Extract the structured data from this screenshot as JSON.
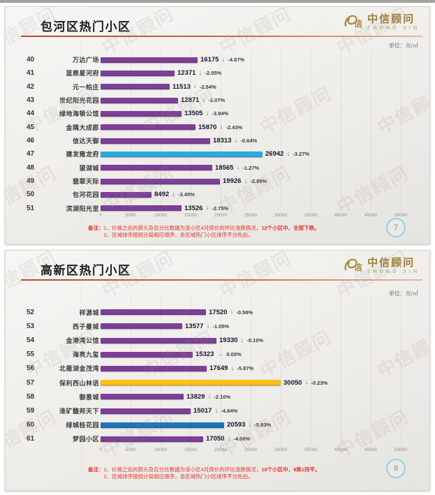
{
  "unit_label": "单位：元/㎡",
  "logo": {
    "name": "中信顾问",
    "subname": "ZHONG XIN"
  },
  "watermark_text": "中信顾问",
  "colors": {
    "bar_purple": "#7d3f98",
    "bar_light_blue": "#29abe2",
    "bar_mid_blue": "#1b75bc",
    "bar_gold": "#ffc213",
    "down_arrow": "#2fa84f",
    "flat_arrow": "#2b9fe0",
    "note_red": "#e8342a",
    "badge_ring": "#8ed2e8",
    "brand_gold": "#9f7f35"
  },
  "slides": [
    {
      "title": "包河区热门小区",
      "page_number": "7",
      "note": {
        "label": "备注：",
        "line1": "1、价格之后的箭头及百分比数据为该小区4月房价的环比涨跌情况，",
        "line1_em": "12个小区中，全部下跌。",
        "line2": "2、区域排序按统计局相应顺序，各区域热门小区排序不分先后。"
      },
      "chart_data": {
        "type": "bar",
        "orientation": "horizontal",
        "value_unit": "元/㎡",
        "xlim": [
          0,
          50000
        ],
        "x_ticks": [
          0,
          5000,
          10000,
          15000,
          20000,
          25000,
          30000,
          35000,
          40000,
          45000,
          50000
        ],
        "grid": true,
        "rows": [
          {
            "rank": "40",
            "name": "万达广场",
            "value": 16175,
            "change": "-4.87%",
            "trend": "down",
            "color": "#7d3f98"
          },
          {
            "rank": "41",
            "name": "蓝鼎星河府",
            "value": 12371,
            "change": "-2.05%",
            "trend": "down",
            "color": "#7d3f98"
          },
          {
            "rank": "42",
            "name": "元一柏庄",
            "value": 11513,
            "change": "-2.54%",
            "trend": "down",
            "color": "#7d3f98"
          },
          {
            "rank": "43",
            "name": "世纪阳光花园",
            "value": 12871,
            "change": "-1.07%",
            "trend": "down",
            "color": "#7d3f98"
          },
          {
            "rank": "44",
            "name": "绿地海顿公馆",
            "value": 13505,
            "change": "-3.94%",
            "trend": "down",
            "color": "#7d3f98"
          },
          {
            "rank": "45",
            "name": "金隅大成郡",
            "value": 15870,
            "change": "-2.43%",
            "trend": "down",
            "color": "#7d3f98"
          },
          {
            "rank": "46",
            "name": "信达天御",
            "value": 18313,
            "change": "-0.64%",
            "trend": "down",
            "color": "#7d3f98"
          },
          {
            "rank": "47",
            "name": "建发雍龙府",
            "value": 26942,
            "change": "-3.27%",
            "trend": "down",
            "color": "#29abe2"
          },
          {
            "rank": "48",
            "name": "望湖城",
            "value": 18565,
            "change": "-1.27%",
            "trend": "down",
            "color": "#7d3f98"
          },
          {
            "rank": "49",
            "name": "翡翠天际",
            "value": 19926,
            "change": "-2.99%",
            "trend": "down",
            "color": "#7d3f98"
          },
          {
            "rank": "50",
            "name": "包河花园",
            "value": 8492,
            "change": "-3.45%",
            "trend": "down",
            "color": "#7d3f98"
          },
          {
            "rank": "51",
            "name": "滨湖阳光里",
            "value": 13526,
            "change": "-2.75%",
            "trend": "down",
            "color": "#7d3f98"
          }
        ]
      }
    },
    {
      "title": "高新区热门小区",
      "page_number": "8",
      "note": {
        "label": "备注：",
        "line1": "1、价格之后的箭头及百分比数据为该小区4月房价的环比涨跌情况，",
        "line1_em": "10个小区中，9跌1持平。",
        "line2": "2、区域排序按统计局相应顺序，各区域热门小区排序不分先后。"
      },
      "chart_data": {
        "type": "bar",
        "orientation": "horizontal",
        "value_unit": "元/㎡",
        "xlim": [
          0,
          50000
        ],
        "x_ticks": [
          0,
          5000,
          10000,
          15000,
          20000,
          25000,
          30000,
          35000,
          40000,
          45000,
          50000
        ],
        "grid": true,
        "rows": [
          {
            "rank": "52",
            "name": "祥源城",
            "value": 17520,
            "change": "-0.58%",
            "trend": "down",
            "color": "#7d3f98"
          },
          {
            "rank": "53",
            "name": "西子曼城",
            "value": 13577,
            "change": "-1.05%",
            "trend": "down",
            "color": "#7d3f98"
          },
          {
            "rank": "54",
            "name": "金港湾公馆",
            "value": 19330,
            "change": "-0.10%",
            "trend": "down",
            "color": "#7d3f98"
          },
          {
            "rank": "55",
            "name": "海亮九玺",
            "value": 15323,
            "change": "0.00%",
            "trend": "flat",
            "color": "#7d3f98"
          },
          {
            "rank": "56",
            "name": "北雁湖金茂湾",
            "value": 17649,
            "change": "-5.87%",
            "trend": "down",
            "color": "#7d3f98"
          },
          {
            "rank": "57",
            "name": "保利西山林语",
            "value": 30050,
            "change": "-0.23%",
            "trend": "down",
            "color": "#ffc213"
          },
          {
            "rank": "58",
            "name": "御景城",
            "value": 13829,
            "change": "-2.10%",
            "trend": "down",
            "color": "#7d3f98"
          },
          {
            "rank": "59",
            "name": "淮矿馥邦天下",
            "value": 15017,
            "change": "-4.84%",
            "trend": "down",
            "color": "#7d3f98"
          },
          {
            "rank": "60",
            "name": "绿城桂花园",
            "value": 20593,
            "change": "-5.93%",
            "trend": "down",
            "color": "#1b75bc"
          },
          {
            "rank": "61",
            "name": "梦园小区",
            "value": 17050,
            "change": "-4.00%",
            "trend": "down",
            "color": "#7d3f98"
          }
        ]
      }
    }
  ]
}
